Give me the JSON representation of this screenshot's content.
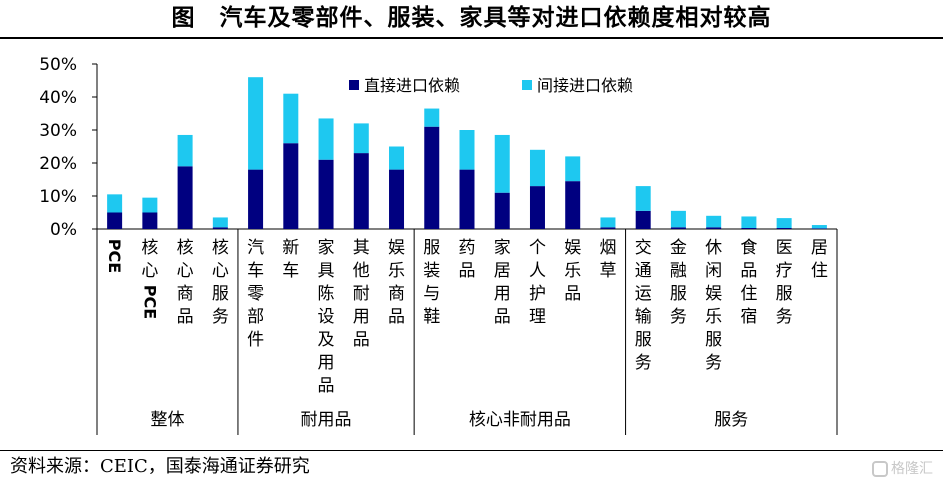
{
  "title": "图　汽车及零部件、服装、家具等对进口依赖度相对较高",
  "source": "资料来源：CEIC，国泰海通证券研究",
  "watermark": "格隆汇",
  "colors": {
    "direct": "#000080",
    "indirect": "#1ec8f0"
  },
  "chart_data": {
    "type": "bar",
    "stacked": true,
    "title": "汽车及零部件、服装、家具等对进口依赖度相对较高",
    "categories": [
      "PCE",
      "核心PCE",
      "核心商品",
      "核心服务",
      "汽车零部件",
      "新车",
      "家具陈设及用品",
      "其他耐用品",
      "娱乐商品",
      "服装与鞋",
      "药品",
      "家居用品",
      "个人护理",
      "娱乐品",
      "烟草",
      "交通运输服务",
      "金融服务",
      "休闲娱乐服务",
      "食品住宿",
      "医疗服务",
      "居住"
    ],
    "groups": [
      {
        "name": "整体",
        "count": 4
      },
      {
        "name": "耐用品",
        "count": 5
      },
      {
        "name": "核心非耐用品",
        "count": 6
      },
      {
        "name": "服务",
        "count": 6
      }
    ],
    "series": [
      {
        "name": "直接进口依赖",
        "values": [
          5,
          5,
          19,
          0.5,
          18,
          26,
          21,
          23,
          18,
          31,
          18,
          11,
          13,
          14.5,
          0.5,
          5.5,
          0.5,
          0.5,
          0.3,
          0.3,
          0.2
        ]
      },
      {
        "name": "间接进口依赖",
        "values": [
          5.5,
          4.5,
          9.5,
          3,
          28,
          15,
          12.5,
          9,
          7,
          5.5,
          12,
          17.5,
          11,
          7.5,
          3,
          7.5,
          5,
          3.5,
          3.5,
          3,
          1
        ]
      }
    ],
    "yticks": [
      "0%",
      "10%",
      "20%",
      "30%",
      "40%",
      "50%"
    ],
    "ylim": [
      0,
      50
    ],
    "legend_position": "top"
  }
}
